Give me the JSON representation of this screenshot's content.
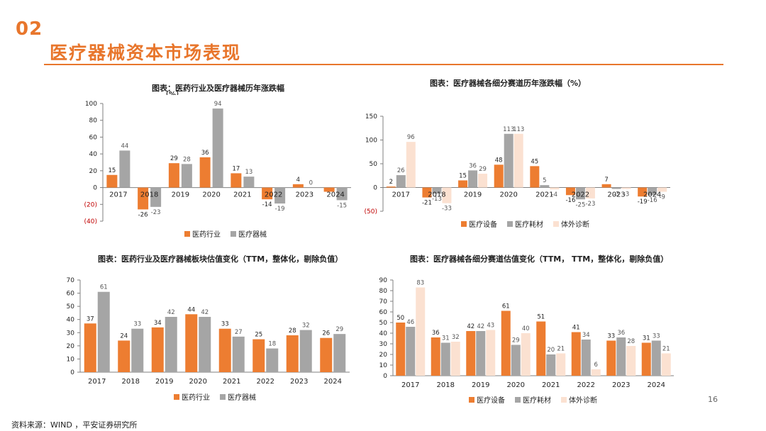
{
  "header": {
    "section_number": "02",
    "title": "医疗器械资本市场表现"
  },
  "footer": {
    "source": "资料来源：WIND ，平安证券研究所",
    "page_number": "16"
  },
  "colors": {
    "orange": "#ED7D31",
    "gray": "#A5A5A5",
    "peach": "#FBE1D1",
    "negative_tick": "#C00000",
    "accent": "#E8762C"
  },
  "chart_data": [
    {
      "id": "c1",
      "type": "bar",
      "title": "图表：医药行业及医疗器械历年涨跌幅",
      "title_overflow": "（%）",
      "categories": [
        "2017",
        "2018",
        "2019",
        "2020",
        "2021",
        "2022",
        "2023",
        "2024"
      ],
      "series": [
        {
          "name": "医药行业",
          "color": "#ED7D31",
          "values": [
            15,
            -26,
            29,
            36,
            17,
            -14,
            4,
            -5
          ]
        },
        {
          "name": "医疗器械",
          "color": "#A5A5A5",
          "values": [
            44,
            -23,
            28,
            94,
            13,
            -19,
            0,
            -15
          ]
        }
      ],
      "labels": [
        [
          "15",
          "-26",
          "29",
          "36",
          "17",
          "-14",
          "4",
          ""
        ],
        [
          "44",
          "-23",
          "28",
          "94",
          "13",
          "-19",
          "0",
          "-15"
        ]
      ],
      "yticks": [
        100,
        80,
        60,
        40,
        20,
        0,
        -20,
        -40
      ],
      "ytick_labels": [
        "100",
        "80",
        "60",
        "40",
        "20",
        "0",
        "(20)",
        "(40)"
      ],
      "ylim": [
        -40,
        100
      ],
      "gridlines": false,
      "legend": "bottom"
    },
    {
      "id": "c2",
      "type": "bar",
      "title": "图表：医疗器械各细分赛道历年涨跌幅（%）",
      "categories": [
        "2017",
        "2018",
        "2019",
        "2020",
        "2021",
        "2022",
        "2023",
        "2024"
      ],
      "series": [
        {
          "name": "医疗设备",
          "color": "#ED7D31",
          "values": [
            2,
            -21,
            15,
            48,
            45,
            -16,
            7,
            -19
          ]
        },
        {
          "name": "医疗耗材",
          "color": "#A5A5A5",
          "values": [
            26,
            -13,
            36,
            113,
            5,
            -25,
            -3,
            -16
          ]
        },
        {
          "name": "体外诊断",
          "color": "#FBE1D1",
          "values": [
            96,
            -33,
            29,
            113,
            -4,
            -23,
            -3,
            -9
          ]
        }
      ],
      "labels": [
        [
          "2",
          "-21",
          "15",
          "48",
          "45",
          "-16",
          "7",
          "-19"
        ],
        [
          "26",
          "-13",
          "36",
          "113",
          "5",
          "-25",
          "-3",
          "-16"
        ],
        [
          "96",
          "-33",
          "29",
          "113",
          "-4",
          "-23",
          "-3",
          "-9"
        ]
      ],
      "yticks": [
        150,
        100,
        50,
        0,
        -50
      ],
      "ytick_labels": [
        "150",
        "100",
        "50",
        "0",
        "(50)"
      ],
      "ylim": [
        -50,
        150
      ],
      "gridlines": false,
      "legend": "bottom"
    },
    {
      "id": "c3",
      "type": "bar",
      "title": "图表：医药行业及医疗器械板块估值变化（TTM，整体化，剔除负值）",
      "categories": [
        "2017",
        "2018",
        "2019",
        "2020",
        "2021",
        "2022",
        "2023",
        "2024"
      ],
      "series": [
        {
          "name": "医药行业",
          "color": "#ED7D31",
          "values": [
            37,
            24,
            34,
            44,
            33,
            25,
            28,
            26
          ]
        },
        {
          "name": "医疗器械",
          "color": "#A5A5A5",
          "values": [
            61,
            33,
            42,
            42,
            27,
            18,
            32,
            29
          ]
        }
      ],
      "labels": [
        [
          "37",
          "24",
          "34",
          "44",
          "33",
          "25",
          "28",
          "26"
        ],
        [
          "61",
          "33",
          "42",
          "42",
          "27",
          "18",
          "32",
          "29"
        ]
      ],
      "yticks": [
        70,
        60,
        50,
        40,
        30,
        20,
        10,
        0
      ],
      "ytick_labels": [
        "70",
        "60",
        "50",
        "40",
        "30",
        "20",
        "10",
        "0"
      ],
      "ylim": [
        0,
        70
      ],
      "gridlines": false,
      "legend": "bottom"
    },
    {
      "id": "c4",
      "type": "bar",
      "title": "图表：医疗器械各细分赛道估值变化（TTM， TTM，整体化，剔除负值）",
      "categories": [
        "2017",
        "2018",
        "2019",
        "2020",
        "2021",
        "2022",
        "2023",
        "2024"
      ],
      "series": [
        {
          "name": "医疗设备",
          "color": "#ED7D31",
          "values": [
            50,
            36,
            42,
            61,
            51,
            41,
            33,
            31
          ]
        },
        {
          "name": "医疗耗材",
          "color": "#A5A5A5",
          "values": [
            46,
            31,
            42,
            29,
            20,
            34,
            36,
            33
          ]
        },
        {
          "name": "体外诊断",
          "color": "#FBE1D1",
          "values": [
            83,
            32,
            43,
            40,
            21,
            6,
            28,
            21
          ]
        }
      ],
      "labels": [
        [
          "50",
          "36",
          "42",
          "61",
          "51",
          "41",
          "33",
          "31"
        ],
        [
          "46",
          "31",
          "42",
          "29",
          "20",
          "34",
          "36",
          "33"
        ],
        [
          "83",
          "32",
          "43",
          "40",
          "21",
          "6",
          "28",
          "21"
        ]
      ],
      "yticks": [
        90,
        80,
        70,
        60,
        50,
        40,
        30,
        20,
        10,
        0
      ],
      "ytick_labels": [
        "90",
        "80",
        "70",
        "60",
        "50",
        "40",
        "30",
        "20",
        "10",
        "0"
      ],
      "ylim": [
        0,
        90
      ],
      "gridlines": false,
      "legend": "bottom"
    }
  ]
}
